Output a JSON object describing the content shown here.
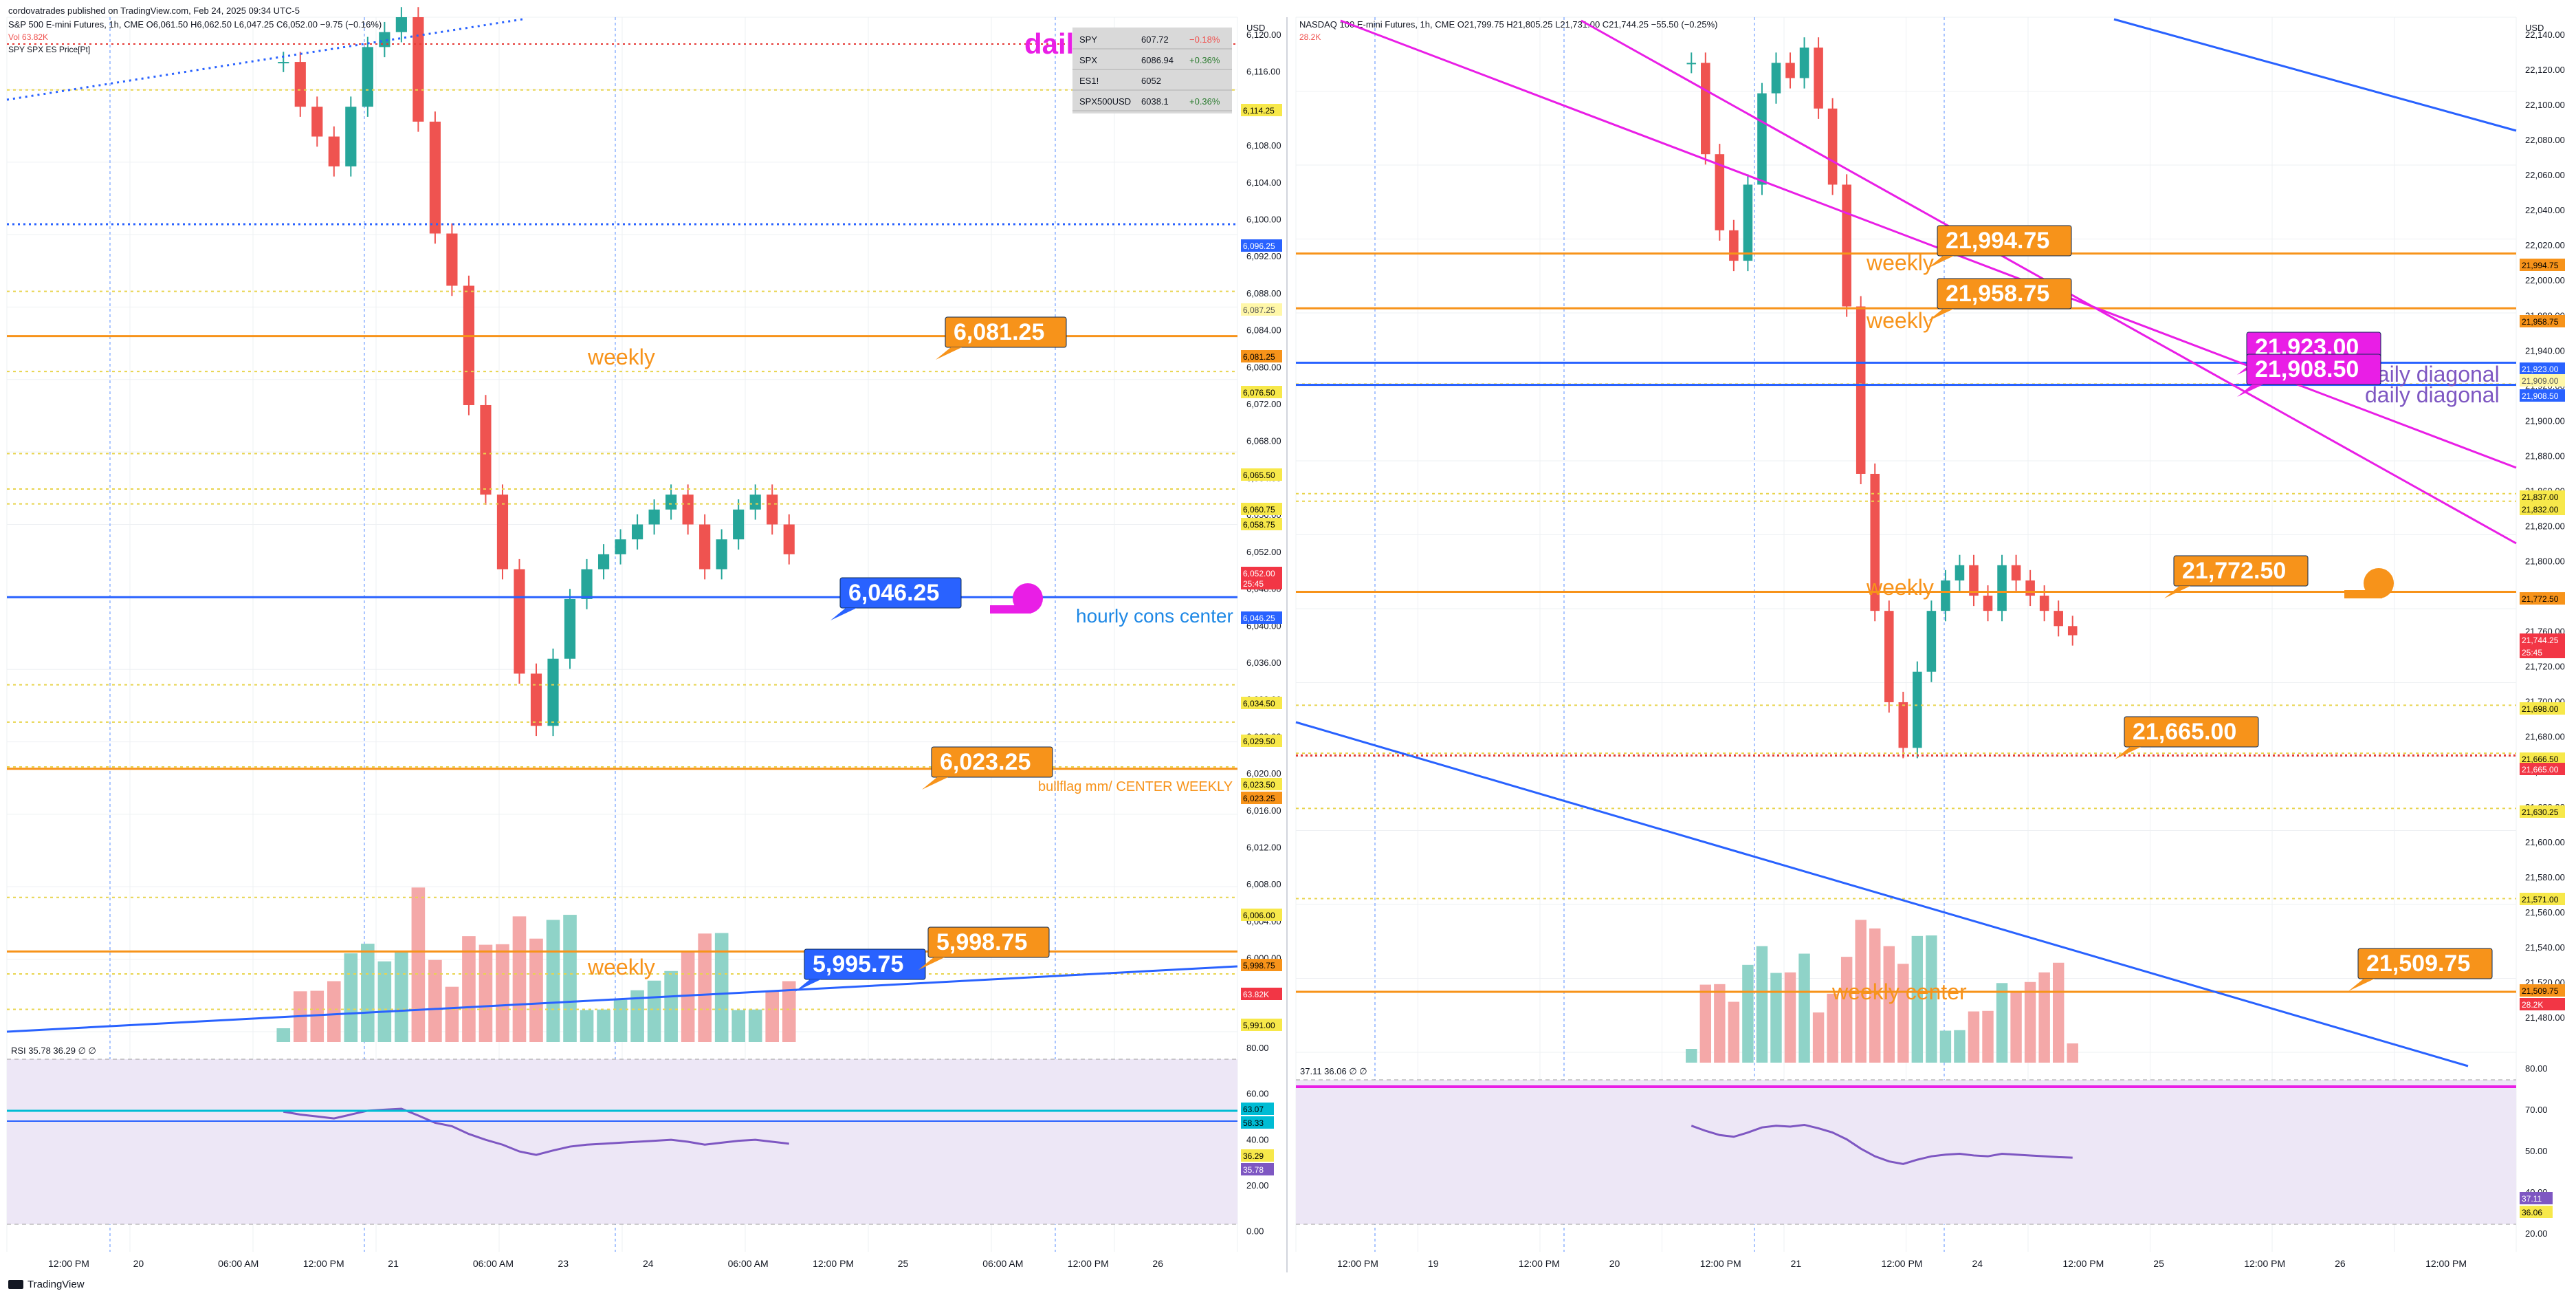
{
  "header": {
    "published": "cordovatrades published on TradingView.com, Feb 24, 2025 09:34 UTC-5"
  },
  "footer": {
    "brand": "TradingView"
  },
  "colors": {
    "up": "#26a69a",
    "down": "#ef5350",
    "upVol": "#8fd3c8",
    "downVol": "#f4a8a8",
    "orange": "#f7931a",
    "blue": "#2962ff",
    "magenta": "#e91ee6",
    "purple": "#7e57c2",
    "yellow": "#e8d44d",
    "grid": "#eef0f3",
    "rsiBand": "#ede7f6"
  },
  "panels": [
    {
      "symbol_line": "S&P 500 E-mini Futures, 1h, CME  O6,061.50  H6,062.50  L6,047.25  C6,052.00  −9.75 (−0.16%)",
      "sub_lines": [
        "Vol 63.82K",
        "SPY SPX ES Price[Pt]"
      ],
      "rsi_label": "RSI  35.78  36.29  ∅  ∅",
      "price_axis_unit": "USD",
      "y_ticks": [
        "6,120.00",
        "6,116.00",
        "6,112.00",
        "6,108.00",
        "6,104.00",
        "6,100.00",
        "6,092.00",
        "6,088.00",
        "6,084.00",
        "6,080.00",
        "6,072.00",
        "6,068.00",
        "6,064.00",
        "6,056.00",
        "6,052.00",
        "6,048.00",
        "6,040.00",
        "6,036.00",
        "6,032.00",
        "6,028.00",
        "6,020.00",
        "6,016.00",
        "6,012.00",
        "6,008.00",
        "6,004.00",
        "6,000.00",
        "5,992.00"
      ],
      "rsi_ticks": [
        "80.00",
        "60.00",
        "40.00",
        "20.00",
        "0.00"
      ],
      "x_ticks": [
        "12:00 PM",
        "20",
        "06:00 AM",
        "12:00 PM",
        "21",
        "06:00 AM",
        "23",
        "24",
        "06:00 AM",
        "12:00 PM",
        "25",
        "06:00 AM",
        "12:00 PM",
        "26"
      ],
      "price_tags": [
        {
          "v": "6,114.25",
          "kind": "yellow"
        },
        {
          "v": "6,096.25",
          "kind": "blue"
        },
        {
          "v": "6,087.25",
          "kind": "yellowlight"
        },
        {
          "v": "6,081.25",
          "kind": "orange"
        },
        {
          "v": "6,076.50",
          "kind": "yellow"
        },
        {
          "v": "6,065.50",
          "kind": "yellow"
        },
        {
          "v": "6,060.75",
          "kind": "yellow"
        },
        {
          "v": "6,058.75",
          "kind": "yellow"
        },
        {
          "v": "6,052.00",
          "kind": "red"
        },
        {
          "v": "25:45",
          "kind": "red"
        },
        {
          "v": "6,046.25",
          "kind": "blue"
        },
        {
          "v": "6,034.50",
          "kind": "yellow"
        },
        {
          "v": "6,029.50",
          "kind": "yellow"
        },
        {
          "v": "6,023.50",
          "kind": "yellow"
        },
        {
          "v": "6,023.25",
          "kind": "orange"
        },
        {
          "v": "6,006.00",
          "kind": "yellow"
        },
        {
          "v": "5,998.75",
          "kind": "orange"
        },
        {
          "v": "63.82K",
          "kind": "red"
        },
        {
          "v": "5,991.00",
          "kind": "yellow"
        }
      ],
      "rsi_tags": [
        {
          "v": "63.07",
          "kind": "teal"
        },
        {
          "v": "58.33",
          "kind": "teal"
        },
        {
          "v": "36.29",
          "kind": "yellow"
        },
        {
          "v": "35.78",
          "kind": "purple"
        }
      ],
      "callouts": [
        {
          "text": "6,081.25",
          "kind": "orange"
        },
        {
          "text": "6,046.25",
          "kind": "blue"
        },
        {
          "text": "6,023.25",
          "kind": "orange"
        },
        {
          "text": "5,995.75",
          "kind": "blue"
        },
        {
          "text": "5,998.75",
          "kind": "orange"
        }
      ],
      "labels": {
        "weekly_a": "weekly",
        "weekly_b": "weekly",
        "hourly": "hourly cons center",
        "bullflag": "bullflag mm/ CENTER WEEKLY",
        "daily_diagonal": "daily diagonal"
      },
      "table": {
        "rows": [
          [
            "SPY",
            "607.72",
            "−0.18%"
          ],
          [
            "SPX",
            "6086.94",
            "+0.36%"
          ],
          [
            "ES1!",
            "6052",
            ""
          ],
          [
            "SPX500USD",
            "6038.1",
            "+0.36%"
          ]
        ]
      }
    },
    {
      "symbol_line": "NASDAQ 100 E-mini Futures, 1h, CME  O21,799.75  H21,805.25  L21,731.00  C21,744.25  −55.50 (−0.25%)",
      "sub_lines": [
        "28.2K"
      ],
      "rsi_label": "37.11  36.06  ∅  ∅",
      "price_axis_unit": "USD",
      "y_ticks": [
        "22,140.00",
        "22,120.00",
        "22,100.00",
        "22,080.00",
        "22,060.00",
        "22,040.00",
        "22,020.00",
        "22,000.00",
        "21,980.00",
        "21,940.00",
        "21,920.00",
        "21,900.00",
        "21,880.00",
        "21,860.00",
        "21,820.00",
        "21,800.00",
        "21,780.00",
        "21,760.00",
        "21,720.00",
        "21,700.00",
        "21,680.00",
        "21,640.00",
        "21,620.00",
        "21,600.00",
        "21,580.00",
        "21,560.00",
        "21,540.00",
        "21,520.00",
        "21,480.00"
      ],
      "rsi_ticks": [
        "80.00",
        "70.00",
        "50.00",
        "40.00",
        "20.00"
      ],
      "x_ticks": [
        "12:00 PM",
        "19",
        "12:00 PM",
        "20",
        "12:00 PM",
        "21",
        "12:00 PM",
        "24",
        "12:00 PM",
        "25",
        "12:00 PM",
        "26",
        "12:00 PM"
      ],
      "price_tags": [
        {
          "v": "21,994.75",
          "kind": "orange"
        },
        {
          "v": "21,958.75",
          "kind": "orange"
        },
        {
          "v": "21,923.00",
          "kind": "blue"
        },
        {
          "v": "21,909.00",
          "kind": "yellowlight"
        },
        {
          "v": "21,908.50",
          "kind": "blue"
        },
        {
          "v": "21,837.00",
          "kind": "yellow"
        },
        {
          "v": "21,832.00",
          "kind": "yellow"
        },
        {
          "v": "21,772.50",
          "kind": "orange"
        },
        {
          "v": "21,744.25",
          "kind": "red"
        },
        {
          "v": "25:45",
          "kind": "red"
        },
        {
          "v": "21,698.00",
          "kind": "yellow"
        },
        {
          "v": "21,666.50",
          "kind": "yellow"
        },
        {
          "v": "21,665.00",
          "kind": "red"
        },
        {
          "v": "21,630.25",
          "kind": "yellow"
        },
        {
          "v": "21,571.00",
          "kind": "yellow"
        },
        {
          "v": "21,509.75",
          "kind": "orange"
        },
        {
          "v": "28.2K",
          "kind": "red"
        }
      ],
      "rsi_tags": [
        {
          "v": "37.11",
          "kind": "purple"
        },
        {
          "v": "36.06",
          "kind": "yellow"
        }
      ],
      "callouts": [
        {
          "text": "21,994.75",
          "kind": "orange"
        },
        {
          "text": "21,958.75",
          "kind": "orange"
        },
        {
          "text": "21,923.00",
          "kind": "magenta"
        },
        {
          "text": "21,908.50",
          "kind": "magenta"
        },
        {
          "text": "21,772.50",
          "kind": "orange"
        },
        {
          "text": "21,665.00",
          "kind": "orange"
        },
        {
          "text": "21,509.75",
          "kind": "orange"
        }
      ],
      "labels": {
        "weekly_a": "weekly",
        "weekly_b": "weekly",
        "weekly_c": "weekly",
        "weekly_center": "weekly center",
        "daily_diag_a": "daily diagonal",
        "daily_diag_b": "daily diagonal"
      }
    }
  ],
  "chart_data": [
    {
      "type": "candlestick",
      "instrument": "S&P 500 E-mini Futures",
      "interval": "1h",
      "ohlc_last": {
        "open": 6061.5,
        "high": 6062.5,
        "low": 6047.25,
        "close": 6052.0,
        "change": -9.75,
        "change_pct": -0.16
      },
      "ylim": [
        5988,
        6124
      ],
      "volume_last": "63.82K",
      "rsi_last": 35.78,
      "rsi_ma": 36.29,
      "levels": [
        6114.25,
        6096.25,
        6087.25,
        6081.25,
        6076.5,
        6065.5,
        6060.75,
        6058.75,
        6046.25,
        6034.5,
        6029.5,
        6023.5,
        6023.25,
        6006.0,
        5998.75,
        5995.75,
        5991.0
      ],
      "closes": [
        6118,
        6112,
        6108,
        6104,
        6112,
        6120,
        6122,
        6124,
        6110,
        6095,
        6088,
        6072,
        6060,
        6050,
        6036,
        6029,
        6038,
        6046,
        6050,
        6052,
        6054,
        6056,
        6058,
        6060,
        6056,
        6050,
        6054,
        6058,
        6060,
        6056,
        6052
      ]
    },
    {
      "type": "candlestick",
      "instrument": "NASDAQ 100 E-mini Futures",
      "interval": "1h",
      "ohlc_last": {
        "open": 21799.75,
        "high": 21805.25,
        "low": 21731.0,
        "close": 21744.25,
        "change": -55.5,
        "change_pct": -0.25
      },
      "ylim": [
        21470,
        22150
      ],
      "volume_last": "28.2K",
      "rsi_last": 37.11,
      "rsi_ma": 36.06,
      "levels": [
        21994.75,
        21958.75,
        21923.0,
        21909.0,
        21908.5,
        21837.0,
        21832.0,
        21772.5,
        21698.0,
        21666.5,
        21665.0,
        21630.25,
        21571.0,
        21509.75
      ],
      "closes": [
        22120,
        22060,
        22010,
        21990,
        22040,
        22100,
        22120,
        22110,
        22130,
        22090,
        22040,
        21960,
        21850,
        21760,
        21700,
        21670,
        21720,
        21760,
        21780,
        21790,
        21770,
        21760,
        21790,
        21780,
        21770,
        21760,
        21750,
        21744
      ]
    }
  ]
}
